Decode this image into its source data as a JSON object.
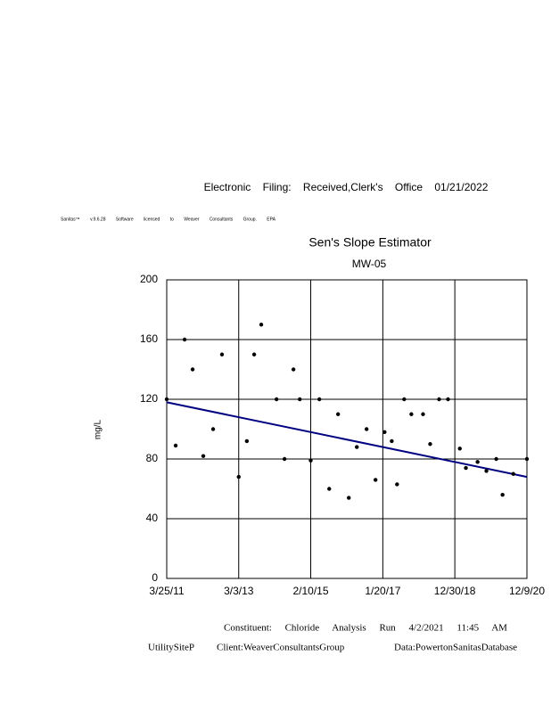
{
  "header": {
    "filing": "Electronic Filing: Received,Clerk's Office 01/21/2022",
    "software": "Sanitas™ v.9.6.28 Software licensed to Weaver Consultants Group. EPA"
  },
  "chart_data": {
    "type": "scatter",
    "title": "Sen's Slope Estimator",
    "subtitle": "MW-05",
    "y_label": "mg/L",
    "xlim": [
      "2011-03-25",
      "2020-12-09"
    ],
    "xticks": [
      {
        "value": "2011-03-25",
        "label": "3/25/11"
      },
      {
        "value": "2013-03-03",
        "label": "3/3/13"
      },
      {
        "value": "2015-02-10",
        "label": "2/10/15"
      },
      {
        "value": "2017-01-20",
        "label": "1/20/17"
      },
      {
        "value": "2018-12-30",
        "label": "12/30/18"
      },
      {
        "value": "2020-12-09",
        "label": "12/9/20"
      }
    ],
    "ylim": [
      0,
      200
    ],
    "yticks": [
      0,
      40,
      80,
      120,
      160,
      200
    ],
    "grid": true,
    "series": [
      {
        "color": "#000000",
        "x": [
          "2011-03-25",
          "2011-06-21",
          "2011-09-17",
          "2011-12-05",
          "2012-03-19",
          "2012-06-24",
          "2012-09-19",
          "2013-03-03",
          "2013-05-22",
          "2013-08-02",
          "2013-10-11",
          "2014-03-10",
          "2014-05-28",
          "2014-08-24",
          "2014-10-25",
          "2015-02-10",
          "2015-05-06",
          "2015-08-11",
          "2015-11-06",
          "2016-02-20",
          "2016-05-09",
          "2016-08-13",
          "2016-11-09",
          "2017-02-06",
          "2017-04-18",
          "2017-06-09",
          "2017-08-18",
          "2017-10-28",
          "2018-02-20",
          "2018-05-01",
          "2018-07-28",
          "2018-10-24",
          "2019-02-17",
          "2019-04-18",
          "2019-08-11",
          "2019-11-06",
          "2020-02-11",
          "2020-04-13",
          "2020-07-28",
          "2020-12-09"
        ],
        "values": [
          120,
          89,
          160,
          140,
          82,
          100,
          150,
          68,
          92,
          150,
          170,
          120,
          80,
          140,
          120,
          79,
          120,
          60,
          110,
          54,
          88,
          100,
          66,
          98,
          92,
          63,
          120,
          110,
          110,
          90,
          120,
          120,
          87,
          74,
          78,
          72,
          80,
          56,
          70,
          80
        ]
      }
    ],
    "trend_line": {
      "color": "#000080",
      "x": [
        "2011-03-25",
        "2020-12-09"
      ],
      "values": [
        118,
        68
      ]
    }
  },
  "footer": {
    "constituent": "Constituent: Chloride Analysis Run 4/2/2021 11:45 AM",
    "site": "UtilitySiteP",
    "client": "Client:WeaverConsultantsGroup",
    "database": "Data:PowertonSanitasDatabase"
  }
}
